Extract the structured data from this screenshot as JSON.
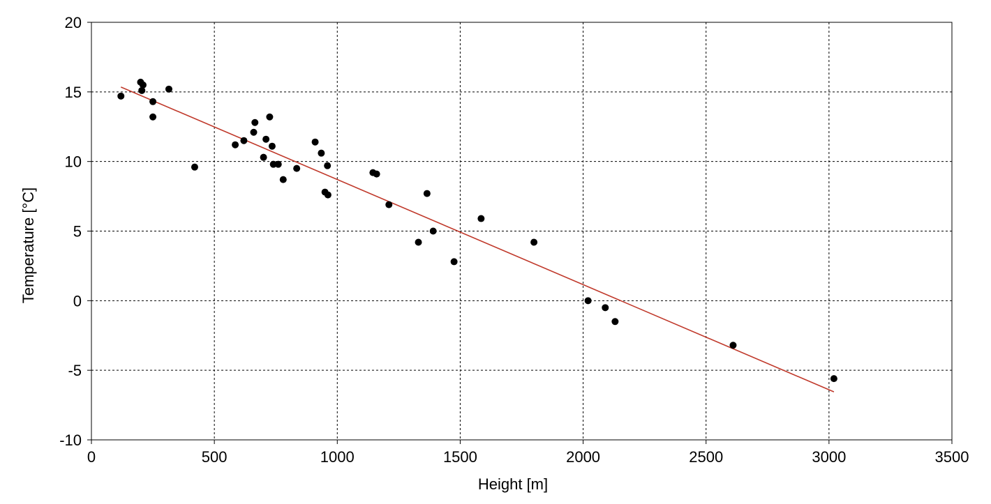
{
  "chart_data": {
    "type": "scatter",
    "xlabel": "Height [m]",
    "ylabel": "Temperature [°C]",
    "xlim": [
      0,
      3500
    ],
    "ylim": [
      -10,
      20
    ],
    "xticks": [
      0,
      500,
      1000,
      1500,
      2000,
      2500,
      3000,
      3500
    ],
    "yticks": [
      -10,
      -5,
      0,
      5,
      10,
      15,
      20
    ],
    "xtick_labels": [
      "0",
      "500",
      "1000",
      "1500",
      "2000",
      "2500",
      "3000",
      "3500"
    ],
    "ytick_labels": [
      "-10",
      "-5",
      "0",
      "5",
      "10",
      "15",
      "20"
    ],
    "grid": true,
    "series": [
      {
        "values": [
          [
            120,
            14.7
          ],
          [
            200,
            15.7
          ],
          [
            205,
            15.1
          ],
          [
            210,
            15.5
          ],
          [
            250,
            14.3
          ],
          [
            250,
            13.2
          ],
          [
            315,
            15.2
          ],
          [
            420,
            9.6
          ],
          [
            585,
            11.2
          ],
          [
            620,
            11.5
          ],
          [
            660,
            12.1
          ],
          [
            665,
            12.8
          ],
          [
            700,
            10.3
          ],
          [
            710,
            11.6
          ],
          [
            725,
            13.2
          ],
          [
            735,
            11.1
          ],
          [
            740,
            9.8
          ],
          [
            760,
            9.8
          ],
          [
            780,
            8.7
          ],
          [
            835,
            9.5
          ],
          [
            910,
            11.4
          ],
          [
            935,
            10.6
          ],
          [
            950,
            7.8
          ],
          [
            960,
            9.7
          ],
          [
            962,
            7.6
          ],
          [
            1145,
            9.2
          ],
          [
            1160,
            9.1
          ],
          [
            1210,
            6.9
          ],
          [
            1330,
            4.2
          ],
          [
            1365,
            7.7
          ],
          [
            1390,
            5.0
          ],
          [
            1475,
            2.8
          ],
          [
            1585,
            5.9
          ],
          [
            1800,
            4.2
          ],
          [
            2020,
            0.0
          ],
          [
            2090,
            -0.5
          ],
          [
            2130,
            -1.5
          ],
          [
            2610,
            -3.2
          ],
          [
            3020,
            -5.6
          ]
        ],
        "color": "#000000"
      }
    ],
    "trendline": {
      "x": [
        120,
        3020
      ],
      "y": [
        15.35,
        -6.55
      ],
      "color": "#c0392b"
    }
  }
}
